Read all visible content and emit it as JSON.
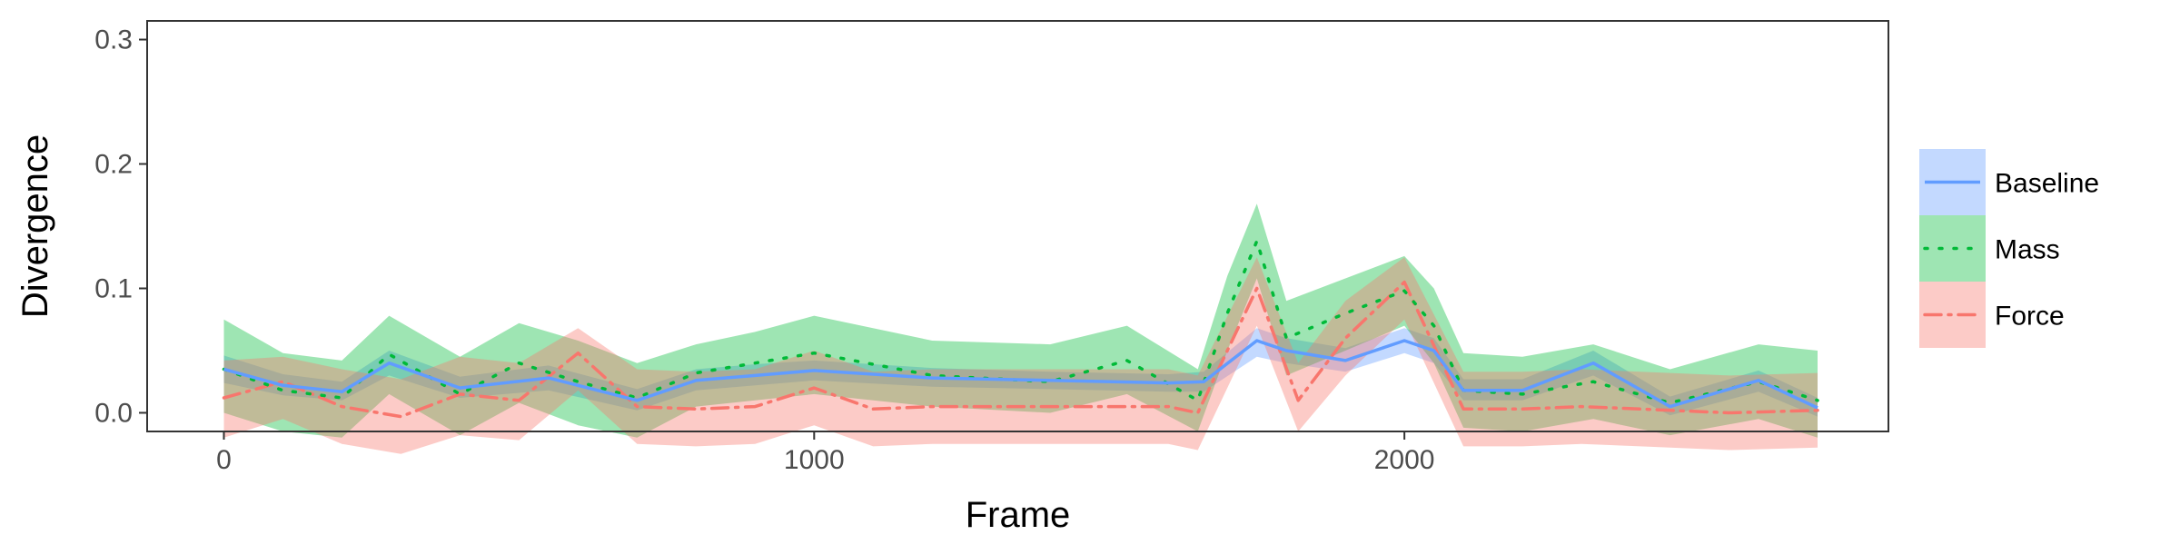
{
  "chart_data": {
    "type": "line",
    "xlabel": "Frame",
    "ylabel": "Divergence",
    "xlim": [
      -130,
      2820
    ],
    "ylim": [
      -0.015,
      0.315
    ],
    "x_ticks": [
      0,
      1000,
      2000
    ],
    "x_tick_labels": [
      "0",
      "1000",
      "2000"
    ],
    "y_ticks": [
      0.0,
      0.1,
      0.2,
      0.3
    ],
    "y_tick_labels": [
      "0.0",
      "0.1",
      "0.2",
      "0.3"
    ],
    "grid": false,
    "legend_position": "right",
    "series": [
      {
        "name": "Baseline",
        "color": "#619CFF",
        "line_style": "solid",
        "x": [
          0,
          100,
          200,
          280,
          400,
          550,
          700,
          800,
          900,
          1000,
          1200,
          1400,
          1600,
          1660,
          1750,
          1800,
          1900,
          2000,
          2050,
          2100,
          2200,
          2320,
          2450,
          2600,
          2700
        ],
        "y": [
          0.035,
          0.022,
          0.017,
          0.04,
          0.02,
          0.028,
          0.01,
          0.026,
          0.03,
          0.034,
          0.028,
          0.026,
          0.024,
          0.025,
          0.058,
          0.05,
          0.042,
          0.058,
          0.05,
          0.018,
          0.018,
          0.04,
          0.005,
          0.026,
          0.004
        ],
        "lower": [
          0.024,
          0.014,
          0.01,
          0.03,
          0.012,
          0.018,
          0.002,
          0.018,
          0.022,
          0.026,
          0.021,
          0.019,
          0.017,
          0.017,
          0.045,
          0.04,
          0.033,
          0.048,
          0.04,
          0.01,
          0.01,
          0.03,
          -0.002,
          0.017,
          -0.003
        ],
        "upper": [
          0.046,
          0.031,
          0.025,
          0.05,
          0.029,
          0.038,
          0.019,
          0.035,
          0.039,
          0.042,
          0.036,
          0.033,
          0.031,
          0.033,
          0.068,
          0.06,
          0.052,
          0.068,
          0.06,
          0.027,
          0.027,
          0.05,
          0.013,
          0.034,
          0.012
        ]
      },
      {
        "name": "Mass",
        "color": "#00BA38",
        "line_style": "dotted",
        "x": [
          0,
          100,
          200,
          280,
          400,
          500,
          600,
          700,
          800,
          900,
          1000,
          1200,
          1400,
          1530,
          1650,
          1700,
          1750,
          1800,
          1900,
          2000,
          2050,
          2100,
          2200,
          2320,
          2450,
          2600,
          2700
        ],
        "y": [
          0.035,
          0.018,
          0.012,
          0.047,
          0.015,
          0.04,
          0.025,
          0.012,
          0.032,
          0.04,
          0.048,
          0.03,
          0.025,
          0.042,
          0.01,
          0.08,
          0.138,
          0.06,
          0.08,
          0.098,
          0.07,
          0.018,
          0.015,
          0.025,
          0.008,
          0.025,
          0.01
        ],
        "lower": [
          0.0,
          -0.015,
          -0.02,
          0.015,
          -0.018,
          0.008,
          -0.01,
          -0.02,
          0.005,
          0.01,
          0.015,
          0.005,
          0.0,
          0.015,
          -0.015,
          0.05,
          0.108,
          0.03,
          0.05,
          0.07,
          0.04,
          -0.012,
          -0.015,
          -0.005,
          -0.018,
          -0.005,
          -0.02
        ],
        "upper": [
          0.075,
          0.048,
          0.042,
          0.078,
          0.045,
          0.072,
          0.058,
          0.04,
          0.055,
          0.065,
          0.078,
          0.058,
          0.055,
          0.07,
          0.035,
          0.11,
          0.168,
          0.09,
          0.108,
          0.126,
          0.1,
          0.048,
          0.045,
          0.055,
          0.035,
          0.055,
          0.05
        ]
      },
      {
        "name": "Force",
        "color": "#F8766D",
        "line_style": "dashdot",
        "x": [
          0,
          100,
          200,
          300,
          400,
          500,
          600,
          700,
          800,
          900,
          1000,
          1100,
          1200,
          1400,
          1600,
          1650,
          1750,
          1820,
          1900,
          2000,
          2100,
          2200,
          2300,
          2400,
          2550,
          2700
        ],
        "y": [
          0.012,
          0.025,
          0.005,
          -0.003,
          0.015,
          0.01,
          0.048,
          0.005,
          0.003,
          0.005,
          0.02,
          0.003,
          0.005,
          0.005,
          0.005,
          0.0,
          0.1,
          0.01,
          0.06,
          0.105,
          0.003,
          0.003,
          0.005,
          0.003,
          0.0,
          0.002
        ],
        "lower": [
          -0.02,
          -0.005,
          -0.025,
          -0.033,
          -0.018,
          -0.022,
          0.018,
          -0.025,
          -0.027,
          -0.025,
          -0.01,
          -0.027,
          -0.025,
          -0.025,
          -0.025,
          -0.03,
          0.07,
          -0.015,
          0.03,
          0.075,
          -0.027,
          -0.027,
          -0.025,
          -0.027,
          -0.03,
          -0.028
        ],
        "upper": [
          0.042,
          0.045,
          0.035,
          0.027,
          0.045,
          0.04,
          0.068,
          0.035,
          0.033,
          0.035,
          0.05,
          0.033,
          0.035,
          0.035,
          0.035,
          0.03,
          0.125,
          0.04,
          0.09,
          0.125,
          0.033,
          0.033,
          0.035,
          0.033,
          0.03,
          0.032
        ]
      }
    ],
    "legend_items": [
      "Baseline",
      "Mass",
      "Force"
    ]
  }
}
